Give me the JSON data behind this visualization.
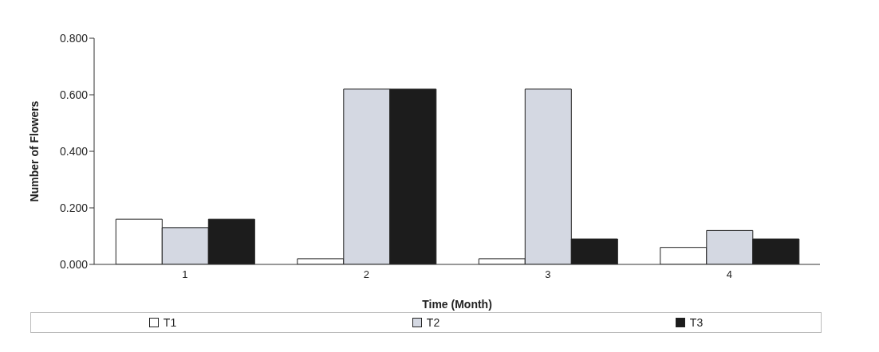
{
  "chart_data": {
    "type": "bar",
    "xlabel": "Time (Month)",
    "ylabel": "Number of Flowers",
    "categories": [
      "1",
      "2",
      "3",
      "4"
    ],
    "series": [
      {
        "name": "T1",
        "color": "#ffffff",
        "values": [
          0.16,
          0.02,
          0.02,
          0.06
        ]
      },
      {
        "name": "T2",
        "color": "#d4d8e2",
        "values": [
          0.13,
          0.62,
          0.62,
          0.12
        ]
      },
      {
        "name": "T3",
        "color": "#1c1c1c",
        "values": [
          0.16,
          0.62,
          0.09,
          0.09
        ]
      }
    ],
    "ylim": [
      0,
      0.8
    ],
    "yticks": [
      {
        "value": 0,
        "label": "0.000"
      },
      {
        "value": 0.2,
        "label": "0.200"
      },
      {
        "value": 0.4,
        "label": "0.400"
      },
      {
        "value": 0.6,
        "label": "0.600"
      },
      {
        "value": 0.8,
        "label": "0.800"
      }
    ],
    "grid": false,
    "legend": "bottom"
  }
}
